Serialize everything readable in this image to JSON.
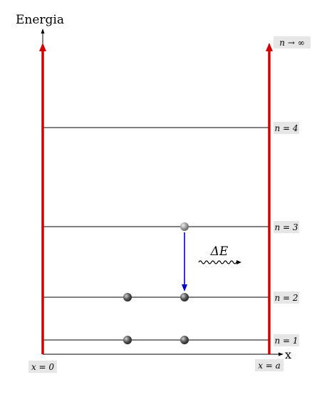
{
  "diagram": {
    "energy_axis_label": "Energia",
    "x_axis_label": "x",
    "wall_left_label": "x = 0",
    "wall_right_label": "x = a",
    "levels": [
      {
        "label": "n = 1",
        "electrons": 2
      },
      {
        "label": "n = 2",
        "electrons": 2
      },
      {
        "label": "n = 3",
        "electrons": 1
      },
      {
        "label": "n = 4",
        "electrons": 0
      }
    ],
    "continuum_label": "n → ∞",
    "transition": {
      "from_level": "n = 3",
      "to_level": "n = 2",
      "label": "ΔE"
    },
    "colors": {
      "wall": "#d40000",
      "transition_arrow": "#0000cc",
      "label_background": "#e6e6e6",
      "level_line": "#000000",
      "electron": "#555555",
      "excited_electron": "#9a9a9a"
    }
  }
}
